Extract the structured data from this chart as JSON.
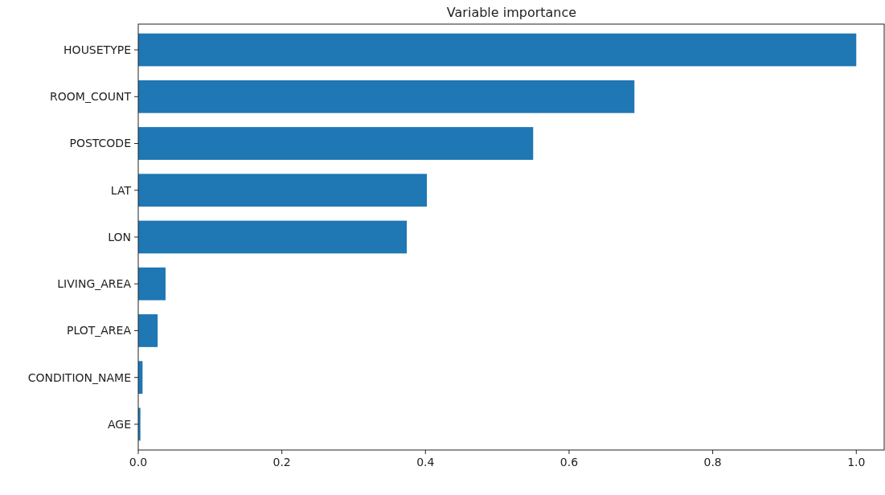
{
  "chart_data": {
    "type": "bar",
    "orientation": "horizontal",
    "title": "Variable importance",
    "categories": [
      "HOUSETYPE",
      "ROOM_COUNT",
      "POSTCODE",
      "LAT",
      "LON",
      "LIVING_AREA",
      "PLOT_AREA",
      "CONDITION_NAME",
      "AGE"
    ],
    "values": [
      1.0,
      0.691,
      0.55,
      0.402,
      0.374,
      0.038,
      0.027,
      0.006,
      0.003
    ],
    "color": "#1f77b4",
    "xlim": [
      0,
      1.04
    ],
    "xticks": [
      {
        "value": 0,
        "label": "0.0"
      },
      {
        "value": 0.2,
        "label": "0.2"
      },
      {
        "value": 0.4,
        "label": "0.4"
      },
      {
        "value": 0.6,
        "label": "0.6"
      },
      {
        "value": 0.8,
        "label": "0.8"
      },
      {
        "value": 1,
        "label": "1.0"
      }
    ],
    "grid": false
  }
}
